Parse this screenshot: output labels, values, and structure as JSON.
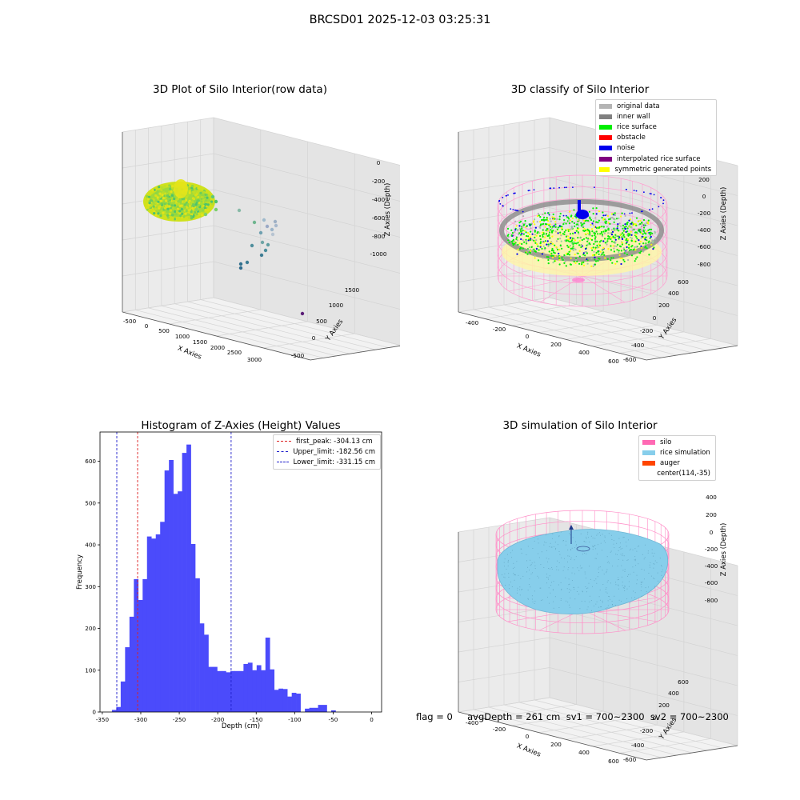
{
  "figure": {
    "suptitle": "BRCSD01 2025-12-03 03:25:31",
    "footer": "flag = 0     avgDepth = 261 cm  sv1 = 700~2300  sv2 = 700~2300"
  },
  "colors": {
    "hist_bar": "#4b4bfb",
    "first_peak": "#dd2222",
    "limits": "#2222cc",
    "silo": "#ff69b4",
    "rice_sim": "#87ceeb",
    "auger": "#ff4500",
    "original": "#b4b4b4",
    "inner_wall": "#808080",
    "rice_surface": "#00ee00",
    "obstacle": "#ff0000",
    "noise": "#0000ee",
    "interp": "#800080",
    "symmetric": "#ffff00"
  },
  "panel_raw": {
    "title": "3D Plot of Silo Interior(row data)",
    "xlabel": "X Axies",
    "ylabel": "Y Axies",
    "zlabel": "Z Axies (Depth)",
    "xticks": [
      "-500",
      "0",
      "500",
      "1000",
      "1500",
      "2000",
      "2500",
      "3000"
    ],
    "yticks": [
      "-500",
      "0",
      "500",
      "1000",
      "1500"
    ],
    "zticks": [
      "0",
      "-200",
      "-400",
      "-600",
      "-800",
      "-1000"
    ]
  },
  "panel_classify": {
    "title": "3D classify of Silo Interior",
    "xlabel": "X Axies",
    "ylabel": "Y Axies",
    "zlabel": "Z Axies (Depth)",
    "xticks": [
      "-400",
      "-200",
      "0",
      "200",
      "400",
      "600"
    ],
    "yticks": [
      "-600",
      "-400",
      "-200",
      "0",
      "200",
      "400",
      "600"
    ],
    "zticks": [
      "200",
      "0",
      "-200",
      "-400",
      "-600",
      "-800"
    ],
    "zticks_partial": "00",
    "legend": [
      {
        "label": "original data",
        "color": "#b4b4b4"
      },
      {
        "label": "inner wall",
        "color": "#808080"
      },
      {
        "label": "rice surface",
        "color": "#00ee00"
      },
      {
        "label": "obstacle",
        "color": "#ff0000"
      },
      {
        "label": "noise",
        "color": "#0000ee"
      },
      {
        "label": "interpolated rice surface",
        "color": "#800080"
      },
      {
        "label": "symmetric generated points",
        "color": "#ffff00"
      }
    ]
  },
  "panel_sim": {
    "title": "3D simulation of Silo Interior",
    "xlabel": "X Axies",
    "ylabel": "Y Axies",
    "zlabel": "Z Axies (Depth)",
    "xticks": [
      "-400",
      "-200",
      "0",
      "200",
      "400",
      "600"
    ],
    "yticks": [
      "-600",
      "-400",
      "-200",
      "0",
      "200",
      "400",
      "600"
    ],
    "zticks": [
      "400",
      "200",
      "0",
      "-200",
      "-400",
      "-600",
      "-800"
    ],
    "legend": [
      {
        "label": "silo",
        "color": "#ff69b4"
      },
      {
        "label": "rice simulation",
        "color": "#87ceeb"
      },
      {
        "label": "auger",
        "color": "#ff4500"
      },
      {
        "label": "center(114,-35)",
        "color": ""
      }
    ]
  },
  "chart_data": {
    "type": "bar",
    "title": "Histogram of Z-Axies (Height) Values",
    "xlabel": "Depth (cm)",
    "ylabel": "Frequency",
    "xlim": [
      -353,
      13
    ],
    "ylim": [
      0,
      670
    ],
    "xticks": [
      -350,
      -300,
      -250,
      -200,
      -150,
      -100,
      -50,
      0
    ],
    "yticks": [
      0,
      100,
      200,
      300,
      400,
      500,
      600
    ],
    "bin_start": -337.5,
    "bin_width": 5.7,
    "values": [
      5,
      12,
      73,
      155,
      228,
      318,
      268,
      318,
      420,
      415,
      425,
      455,
      578,
      603,
      522,
      528,
      620,
      640,
      402,
      320,
      212,
      185,
      108,
      108,
      98,
      98,
      95,
      98,
      98,
      98,
      115,
      118,
      100,
      112,
      100,
      178,
      102,
      53,
      56,
      55,
      37,
      46,
      44,
      0,
      8,
      10,
      10,
      17,
      17,
      0,
      4
    ],
    "vlines": [
      {
        "name": "first_peak",
        "label": "first_peak: -304.13 cm",
        "x": -304.13,
        "color": "#dd2222"
      },
      {
        "name": "upper_limit",
        "label": "Upper_limit: -182.56 cm",
        "x": -182.56,
        "color": "#2222cc"
      },
      {
        "name": "lower_limit",
        "label": "Lower_limit: -331.15 cm",
        "x": -331.15,
        "color": "#2222cc"
      }
    ],
    "legend_position": "top-right",
    "grid": false
  }
}
